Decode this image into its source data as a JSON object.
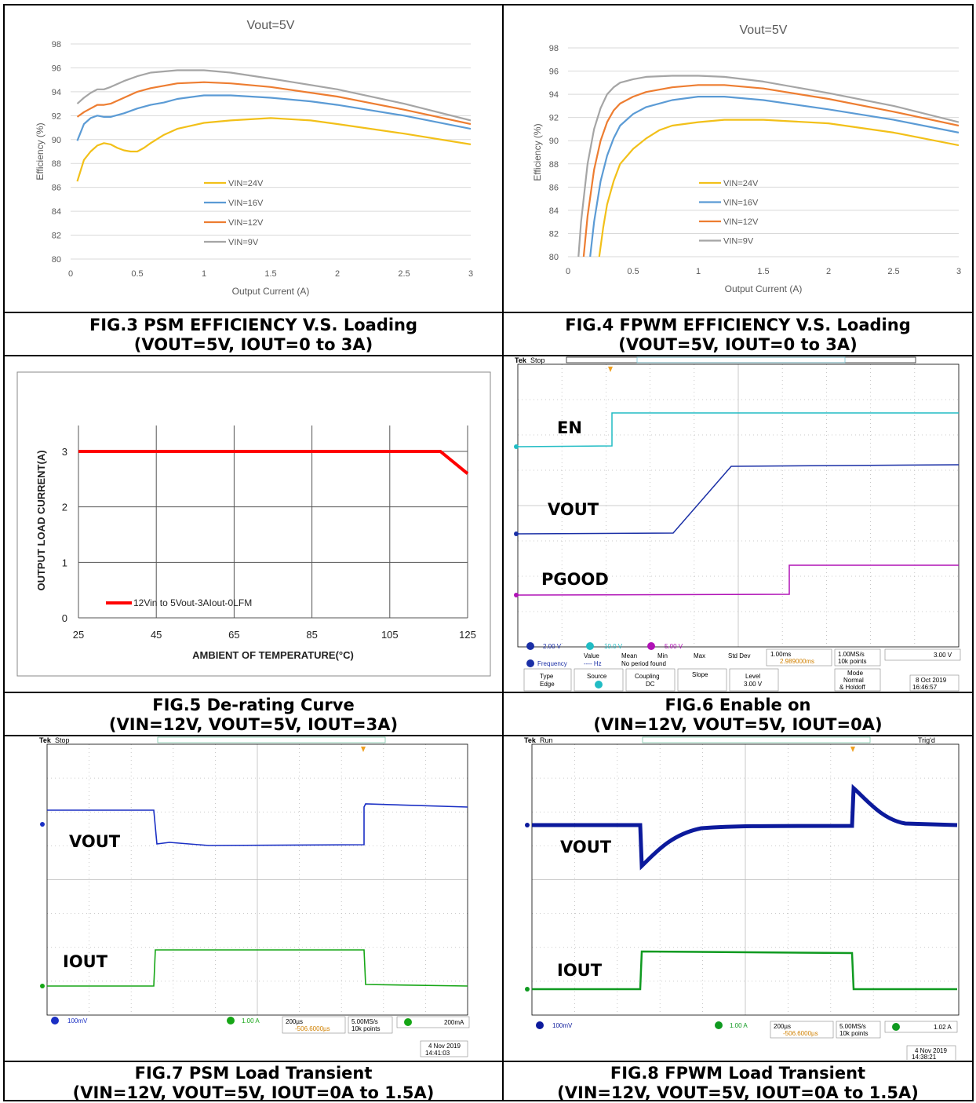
{
  "cells": {
    "fig3": {
      "caption_line1": "FIG.3 PSM EFFICIENCY V.S. Loading",
      "caption_line2": "(VOUT=5V, IOUT=0 to 3A)"
    },
    "fig4": {
      "caption_line1": "FIG.4 FPWM EFFICIENCY V.S. Loading",
      "caption_line2": "(VOUT=5V, IOUT=0 to 3A)"
    },
    "fig5": {
      "caption_line1": "FIG.5 De-rating Curve",
      "caption_line2": "(VIN=12V, VOUT=5V, IOUT=3A)"
    },
    "fig6": {
      "caption_line1": "FIG.6 Enable on",
      "caption_line2": "(VIN=12V, VOUT=5V, IOUT=0A)",
      "scope": {
        "status": "Stop",
        "labels": [
          "EN",
          "VOUT",
          "PGOOD"
        ],
        "ch1": "2.00 V",
        "ch2": "10.0 V",
        "ch3": "5.00 V",
        "timebase": "1.00ms",
        "trigger_pos": "2.989000ms",
        "sample": "1.00MS/s",
        "points": "10k points",
        "trig_level": "3.00 V",
        "meas_header": [
          "Value",
          "Mean",
          "Min",
          "Max",
          "Std Dev"
        ],
        "meas_name": "Frequency",
        "meas_value": "---- Hz",
        "meas_note": "No period found",
        "menu_type": "Type",
        "menu_type_val": "Edge",
        "menu_source": "Source",
        "menu_coupling": "Coupling",
        "menu_coupling_val": "DC",
        "menu_slope": "Slope",
        "menu_level": "Level",
        "menu_level_val": "3.00 V",
        "menu_mode": "Mode",
        "menu_mode_val1": "Normal",
        "menu_mode_val2": "& Holdoff",
        "date": "8 Oct  2019",
        "time": "16:46:57"
      }
    },
    "fig7": {
      "caption_line1": "FIG.7 PSM Load Transient",
      "caption_line2": "(VIN=12V, VOUT=5V, IOUT=0A to 1.5A)",
      "scope": {
        "status": "Stop",
        "labels": [
          "VOUT",
          "IOUT"
        ],
        "ch1": "100mV",
        "ch4": "1.00 A",
        "timebase": "200µs",
        "trigger_pos": "-506.6000µs",
        "sample": "5.00MS/s",
        "points": "10k points",
        "trig_level": "200mA",
        "date": "4 Nov 2019",
        "time": "14:41:03"
      }
    },
    "fig8": {
      "caption_line1": "FIG.8 FPWM Load Transient",
      "caption_line2": "(VIN=12V, VOUT=5V, IOUT=0A to 1.5A)",
      "scope": {
        "status": "Run",
        "trig_status": "Trig'd",
        "labels": [
          "VOUT",
          "IOUT"
        ],
        "ch1": "100mV",
        "ch4": "1.00 A",
        "timebase": "200µs",
        "trigger_pos": "-506.6000µs",
        "sample": "5.00MS/s",
        "points": "10k points",
        "trig_level": "1.02 A",
        "date": "4 Nov 2019",
        "time": "14:38:21"
      }
    }
  },
  "chart_data": [
    {
      "id": "fig3",
      "type": "line",
      "title": "Vout=5V",
      "xlabel": "Output Current (A)",
      "ylabel": "Efficiency (%)",
      "xlim": [
        0,
        3
      ],
      "ylim": [
        80,
        98
      ],
      "xticks": [
        "0",
        "0.5",
        "1",
        "1.5",
        "2",
        "2.5",
        "3"
      ],
      "yticks": [
        "80",
        "82",
        "84",
        "86",
        "88",
        "90",
        "92",
        "94",
        "96",
        "98"
      ],
      "grid": true,
      "legend": "center",
      "series": [
        {
          "name": "VIN=24V",
          "color": "#f2c019",
          "x": [
            0.05,
            0.1,
            0.15,
            0.2,
            0.25,
            0.3,
            0.35,
            0.4,
            0.45,
            0.5,
            0.55,
            0.6,
            0.7,
            0.8,
            1.0,
            1.2,
            1.5,
            1.8,
            2.0,
            2.5,
            3.0
          ],
          "y": [
            86.5,
            88.3,
            89.0,
            89.5,
            89.7,
            89.6,
            89.3,
            89.1,
            89.0,
            89.0,
            89.3,
            89.7,
            90.4,
            90.9,
            91.4,
            91.6,
            91.8,
            91.6,
            91.3,
            90.5,
            89.6
          ]
        },
        {
          "name": "VIN=16V",
          "color": "#5b9bd5",
          "x": [
            0.05,
            0.1,
            0.15,
            0.2,
            0.25,
            0.3,
            0.4,
            0.5,
            0.6,
            0.7,
            0.8,
            1.0,
            1.2,
            1.5,
            1.8,
            2.0,
            2.5,
            3.0
          ],
          "y": [
            89.9,
            91.3,
            91.8,
            92.0,
            91.9,
            91.9,
            92.2,
            92.6,
            92.9,
            93.1,
            93.4,
            93.7,
            93.7,
            93.5,
            93.2,
            92.9,
            92.0,
            90.9
          ]
        },
        {
          "name": "VIN=12V",
          "color": "#ed7d31",
          "x": [
            0.05,
            0.1,
            0.15,
            0.2,
            0.25,
            0.3,
            0.4,
            0.5,
            0.6,
            0.8,
            1.0,
            1.2,
            1.5,
            2.0,
            2.5,
            3.0
          ],
          "y": [
            91.9,
            92.3,
            92.6,
            92.9,
            92.9,
            93.0,
            93.5,
            94.0,
            94.3,
            94.7,
            94.8,
            94.7,
            94.4,
            93.6,
            92.5,
            91.3
          ]
        },
        {
          "name": "VIN=9V",
          "color": "#a5a5a5",
          "x": [
            0.05,
            0.1,
            0.15,
            0.2,
            0.25,
            0.3,
            0.4,
            0.5,
            0.6,
            0.8,
            1.0,
            1.2,
            1.5,
            2.0,
            2.5,
            3.0
          ],
          "y": [
            93.0,
            93.5,
            93.9,
            94.2,
            94.2,
            94.4,
            94.9,
            95.3,
            95.6,
            95.8,
            95.8,
            95.6,
            95.1,
            94.2,
            93.0,
            91.6
          ]
        }
      ]
    },
    {
      "id": "fig4",
      "type": "line",
      "title": "Vout=5V",
      "xlabel": "Output Current (A)",
      "ylabel": "Efficiency (%)",
      "xlim": [
        0,
        3
      ],
      "ylim": [
        80,
        98
      ],
      "xticks": [
        "0",
        "0.5",
        "1",
        "1.5",
        "2",
        "2.5",
        "3"
      ],
      "yticks": [
        "80",
        "82",
        "84",
        "86",
        "88",
        "90",
        "92",
        "94",
        "96",
        "98"
      ],
      "grid": true,
      "legend": "center-right",
      "series": [
        {
          "name": "VIN=24V",
          "color": "#f2c019",
          "x": [
            0.24,
            0.27,
            0.3,
            0.35,
            0.4,
            0.5,
            0.6,
            0.7,
            0.8,
            1.0,
            1.2,
            1.5,
            2.0,
            2.5,
            3.0
          ],
          "y": [
            80,
            82.5,
            84.5,
            86.5,
            88.0,
            89.3,
            90.2,
            90.9,
            91.3,
            91.6,
            91.8,
            91.8,
            91.5,
            90.7,
            89.6
          ]
        },
        {
          "name": "VIN=16V",
          "color": "#5b9bd5",
          "x": [
            0.17,
            0.2,
            0.25,
            0.3,
            0.35,
            0.4,
            0.5,
            0.6,
            0.8,
            1.0,
            1.2,
            1.5,
            2.0,
            2.5,
            3.0
          ],
          "y": [
            80,
            83.0,
            86.5,
            88.7,
            90.2,
            91.3,
            92.3,
            92.9,
            93.5,
            93.8,
            93.8,
            93.5,
            92.7,
            91.8,
            90.7
          ]
        },
        {
          "name": "VIN=12V",
          "color": "#ed7d31",
          "x": [
            0.12,
            0.15,
            0.2,
            0.25,
            0.3,
            0.35,
            0.4,
            0.5,
            0.6,
            0.8,
            1.0,
            1.2,
            1.5,
            2.0,
            2.5,
            3.0
          ],
          "y": [
            80,
            83.5,
            87.5,
            90.0,
            91.6,
            92.6,
            93.2,
            93.8,
            94.2,
            94.6,
            94.8,
            94.8,
            94.5,
            93.6,
            92.5,
            91.3
          ]
        },
        {
          "name": "VIN=9V",
          "color": "#a5a5a5",
          "x": [
            0.08,
            0.1,
            0.15,
            0.2,
            0.25,
            0.3,
            0.35,
            0.4,
            0.5,
            0.6,
            0.8,
            1.0,
            1.2,
            1.5,
            2.0,
            2.5,
            3.0
          ],
          "y": [
            80,
            83.0,
            88.0,
            91.0,
            92.8,
            94.0,
            94.6,
            95.0,
            95.3,
            95.5,
            95.6,
            95.6,
            95.5,
            95.1,
            94.1,
            93.0,
            91.6
          ]
        }
      ]
    },
    {
      "id": "fig5",
      "type": "line",
      "xlabel": "AMBIENT OF TEMPERATURE(°C)",
      "ylabel": "OUTPUT LOAD CURRENT(A)",
      "xlim": [
        25,
        125
      ],
      "ylim": [
        0,
        3
      ],
      "xticks": [
        "25",
        "45",
        "65",
        "85",
        "105",
        "125"
      ],
      "yticks": [
        "0",
        "1",
        "2",
        "3"
      ],
      "grid": true,
      "legend": "bottom-left",
      "series": [
        {
          "name": "12Vin to 5Vout-3AIout-0LFM",
          "color": "#ff0000",
          "x": [
            25,
            118,
            125
          ],
          "y": [
            3,
            3,
            2.6
          ]
        }
      ]
    }
  ]
}
